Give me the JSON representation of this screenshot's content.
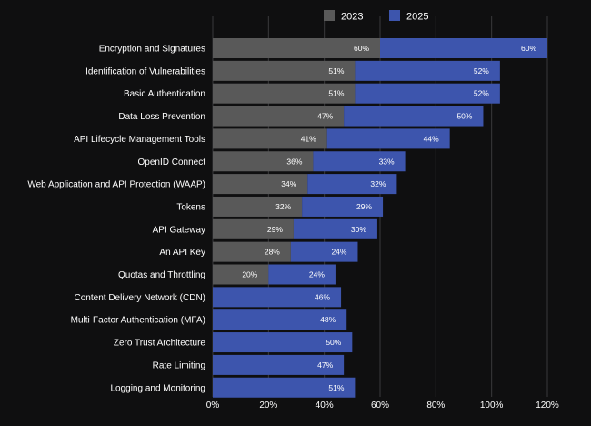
{
  "chart_data": {
    "type": "bar",
    "orientation": "horizontal",
    "stacked": true,
    "categories": [
      "Encryption and Signatures",
      "Identification of Vulnerabilities",
      "Basic Authentication",
      "Data Loss Prevention",
      "API Lifecycle Management Tools",
      "OpenID Connect",
      "Web Application and API Protection (WAAP)",
      "Tokens",
      "API Gateway",
      "An API Key",
      "Quotas and Throttling",
      "Content Delivery Network (CDN)",
      "Multi-Factor Authentication (MFA)",
      "Zero Trust Architecture",
      "Rate Limiting",
      "Logging and Monitoring"
    ],
    "series": [
      {
        "name": "2023",
        "color": "#595959",
        "values": [
          60,
          51,
          51,
          47,
          41,
          36,
          34,
          32,
          29,
          28,
          20,
          null,
          null,
          null,
          null,
          null
        ],
        "labels": [
          "60%",
          "51%",
          "51%",
          "47%",
          "41%",
          "36%",
          "34%",
          "32%",
          "29%",
          "28%",
          "20%",
          "",
          "",
          "",
          "",
          ""
        ]
      },
      {
        "name": "2025",
        "color": "#3d55ad",
        "values": [
          60,
          52,
          52,
          50,
          44,
          33,
          32,
          29,
          30,
          24,
          24,
          46,
          48,
          50,
          47,
          51
        ],
        "labels": [
          "60%",
          "52%",
          "52%",
          "50%",
          "44%",
          "33%",
          "32%",
          "29%",
          "30%",
          "24%",
          "24%",
          "46%",
          "48%",
          "50%",
          "47%",
          "51%"
        ]
      }
    ],
    "x_ticks": [
      "0%",
      "20%",
      "40%",
      "60%",
      "80%",
      "100%",
      "120%"
    ],
    "xlim": [
      0,
      120
    ],
    "grid": "vertical",
    "legend_position": "top-right",
    "title": "",
    "xlabel": "",
    "ylabel": ""
  }
}
